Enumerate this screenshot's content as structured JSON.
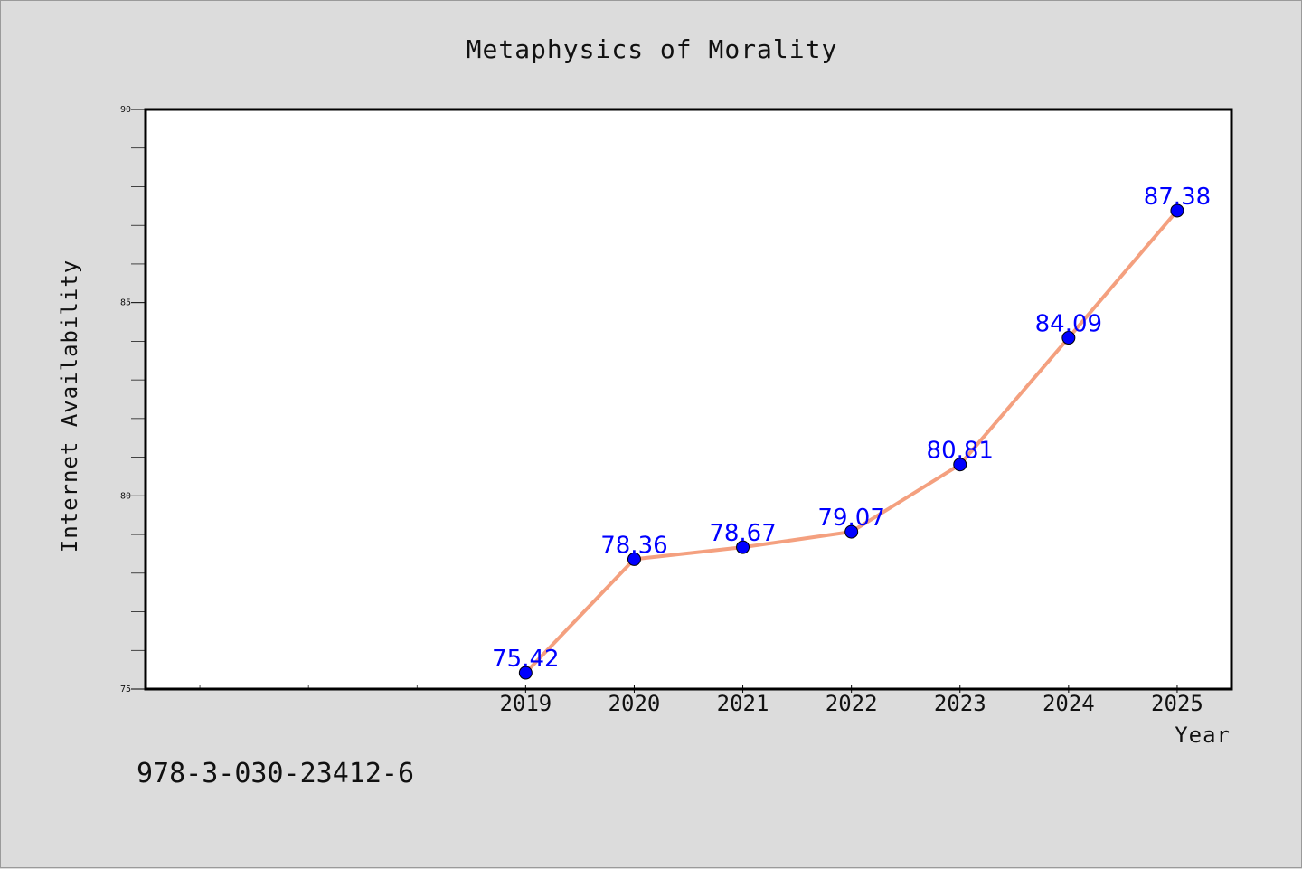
{
  "chart_data": {
    "type": "line",
    "title": "Metaphysics of Morality",
    "xlabel": "Year",
    "ylabel": "Internet Availability",
    "x": [
      2019,
      2020,
      2021,
      2022,
      2023,
      2024,
      2025
    ],
    "series": [
      {
        "values": [
          75.42,
          78.36,
          78.67,
          79.07,
          80.81,
          84.09,
          87.38
        ]
      }
    ],
    "x_tick_labels": [
      "2019",
      "2020",
      "2021",
      "2022",
      "2023",
      "2024",
      "2025"
    ],
    "y_ticks": [
      75,
      80,
      85,
      90
    ],
    "y_tick_labels": [
      "75",
      "80",
      "85",
      "90"
    ],
    "xlim": [
      2015.5,
      2025.5
    ],
    "ylim": [
      75,
      90
    ],
    "line_color": "#f4a07f",
    "marker_color": "#0000ff",
    "label_color": "#0000ff",
    "grid": false,
    "data_labels": [
      "75.42",
      "78.36",
      "78.67",
      "79.07",
      "80.81",
      "84.09",
      "87.38"
    ]
  },
  "footer": {
    "code": "978-3-030-23412-6"
  }
}
